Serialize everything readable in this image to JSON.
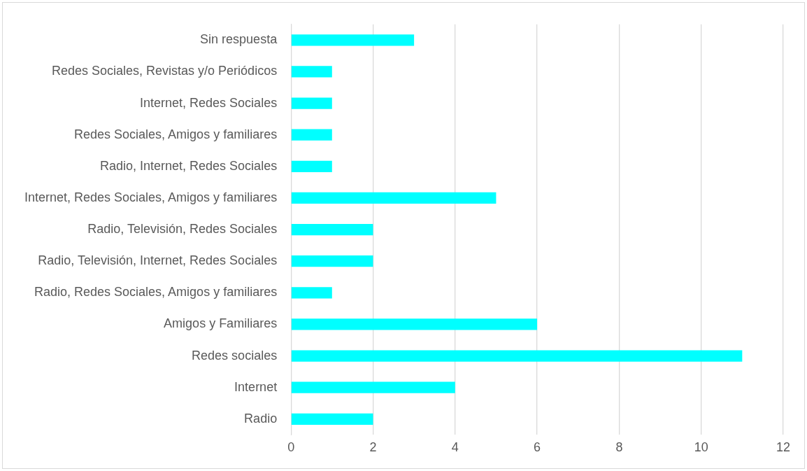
{
  "chart_data": {
    "type": "bar",
    "orientation": "horizontal",
    "categories": [
      "Sin respuesta",
      "Redes Sociales, Revistas y/o Periódicos",
      "Internet, Redes Sociales",
      "Redes Sociales, Amigos y familiares",
      "Radio, Internet, Redes Sociales",
      "Internet, Redes Sociales, Amigos y familiares",
      "Radio, Televisión, Redes Sociales",
      "Radio, Televisión, Internet, Redes Sociales",
      "Radio, Redes Sociales, Amigos y familiares",
      "Amigos y Familiares",
      "Redes sociales",
      "Internet",
      "Radio"
    ],
    "values": [
      3,
      1,
      1,
      1,
      1,
      5,
      2,
      2,
      1,
      6,
      11,
      4,
      2
    ],
    "color": "#00ffff",
    "xlim": [
      0,
      12
    ],
    "xticks": [
      0,
      2,
      4,
      6,
      8,
      10,
      12
    ],
    "grid": "x",
    "legend": false
  }
}
